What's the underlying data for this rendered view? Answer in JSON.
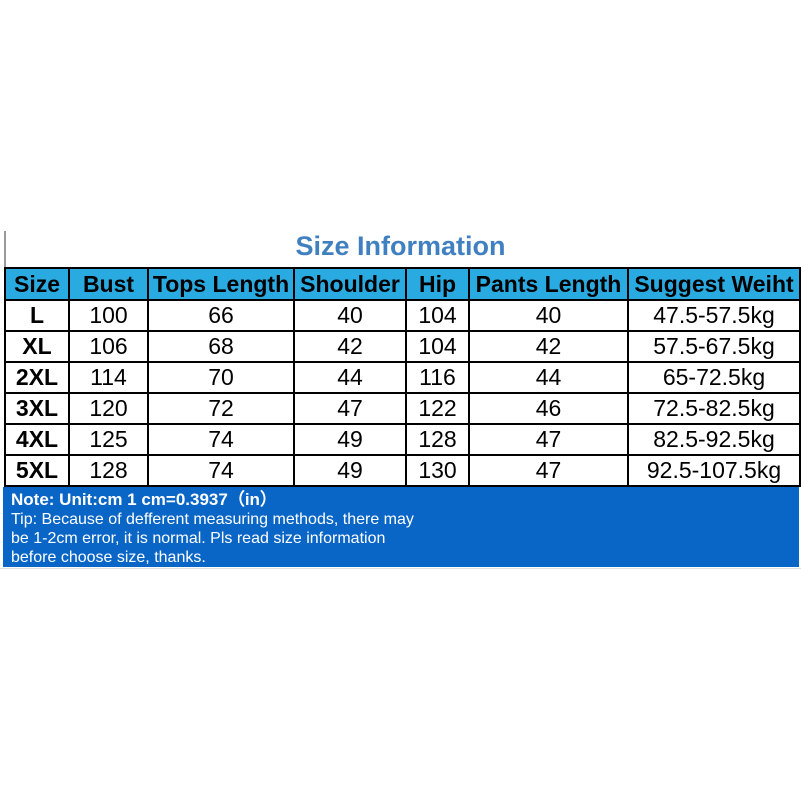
{
  "title": "Size Information",
  "table": {
    "headers": [
      "Size",
      "Bust",
      "Tops Length",
      "Shoulder",
      "Hip",
      "Pants Length",
      "Suggest Weiht"
    ],
    "rows": [
      [
        "L",
        "100",
        "66",
        "40",
        "104",
        "40",
        "47.5-57.5kg"
      ],
      [
        "XL",
        "106",
        "68",
        "42",
        "104",
        "42",
        "57.5-67.5kg"
      ],
      [
        "2XL",
        "114",
        "70",
        "44",
        "116",
        "44",
        "65-72.5kg"
      ],
      [
        "3XL",
        "120",
        "72",
        "47",
        "122",
        "46",
        "72.5-82.5kg"
      ],
      [
        "4XL",
        "125",
        "74",
        "49",
        "128",
        "47",
        "82.5-92.5kg"
      ],
      [
        "5XL",
        "128",
        "74",
        "49",
        "130",
        "47",
        "92.5-107.5kg"
      ]
    ]
  },
  "note": {
    "line1": "Note: Unit:cm  1 cm=0.3937（in）",
    "tip_lines": [
      "Tip: Because of defferent measuring methods, there may",
      "be 1-2cm error, it is normal. Pls read size information",
      "before choose size, thanks."
    ]
  },
  "colors": {
    "title_text": "#4080C0",
    "header_bg": "#29ABE2",
    "note_bg": "#0A66C6",
    "table_border": "#000000"
  }
}
